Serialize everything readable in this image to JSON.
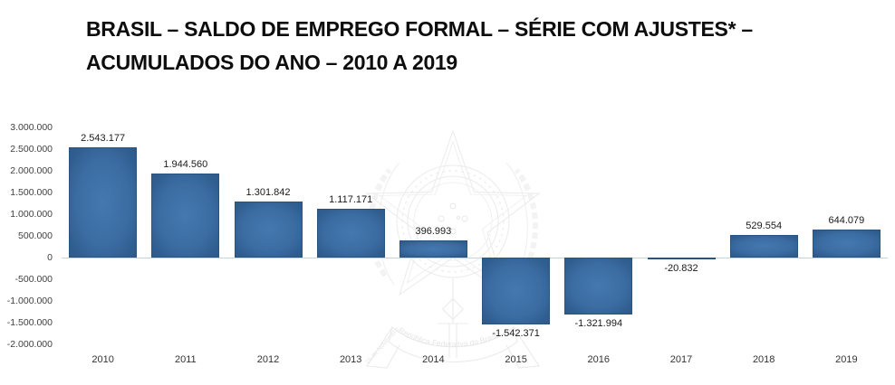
{
  "title": {
    "line1": "BRASIL – SALDO DE EMPREGO FORMAL – SÉRIE COM AJUSTES* –",
    "line2": "ACUMULADOS DO ANO – 2010 A 2019"
  },
  "watermark": {
    "name": "brazil-coat-of-arms",
    "ribbon_text": "República Federativa do Brasil",
    "side_text": "15 de Novembro"
  },
  "chart_data": {
    "type": "bar",
    "title": "BRASIL – SALDO DE EMPREGO FORMAL – SÉRIE COM AJUSTES* – ACUMULADOS DO ANO – 2010 A 2019",
    "categories": [
      "2010",
      "2011",
      "2012",
      "2013",
      "2014",
      "2015",
      "2016",
      "2017",
      "2018",
      "2019"
    ],
    "values": [
      2543177,
      1944560,
      1301842,
      1117171,
      396993,
      -1542371,
      -1321994,
      -20832,
      529554,
      644079
    ],
    "data_labels": [
      "2.543.177",
      "1.944.560",
      "1.301.842",
      "1.117.171",
      "396.993",
      "-1.542.371",
      "-1.321.994",
      "-20.832",
      "529.554",
      "644.079"
    ],
    "xlabel": "",
    "ylabel": "",
    "ylim": [
      -2000000,
      3000000
    ],
    "ytick_values": [
      3000000,
      2500000,
      2000000,
      1500000,
      1000000,
      500000,
      0,
      -500000,
      -1000000,
      -1500000,
      -2000000
    ],
    "ytick_labels": [
      "3.000.000",
      "2.500.000",
      "2.000.000",
      "1.500.000",
      "1.000.000",
      "500.000",
      "0",
      "-500.000",
      "-1.000.000",
      "-1.500.000",
      "-2.000.000"
    ],
    "grid": false,
    "legend": false,
    "bar_color_center": "#4478ae",
    "bar_color_edge": "#2e5a8b",
    "bar_border_color": "#2a5480",
    "zero_line_color": "#c3d4e6"
  }
}
